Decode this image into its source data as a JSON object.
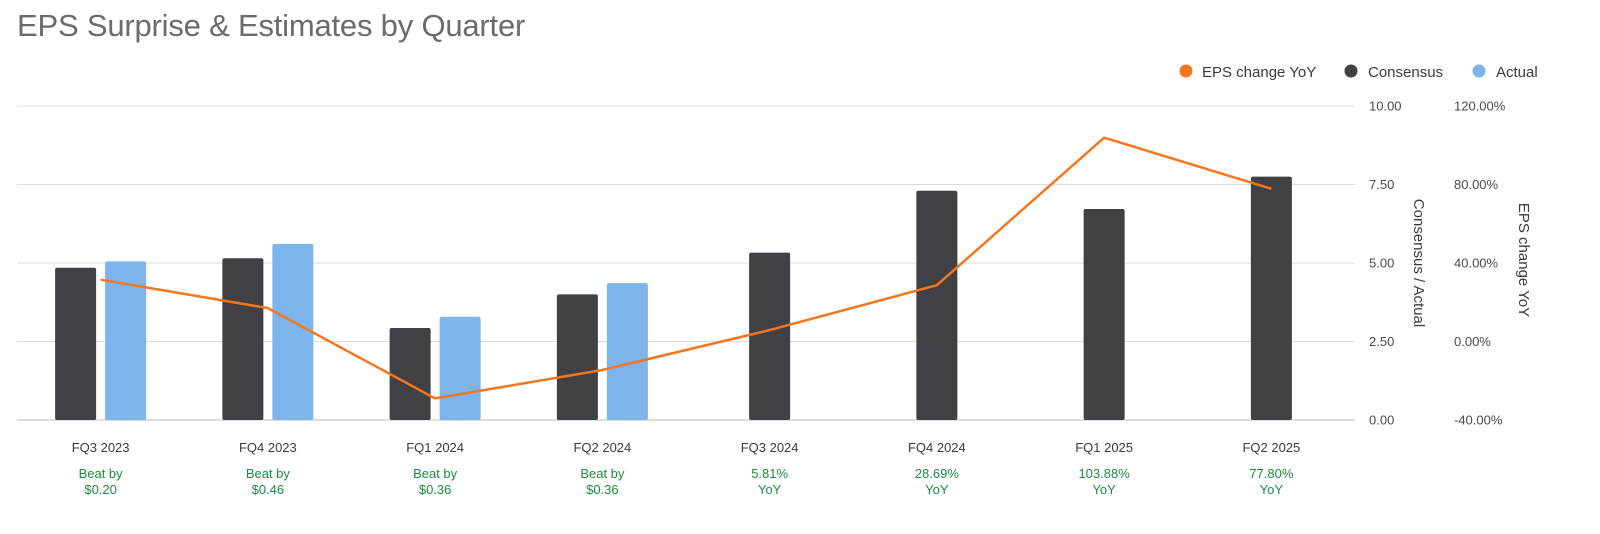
{
  "chart_data": {
    "type": "bar",
    "title": "EPS Surprise & Estimates by Quarter",
    "categories": [
      "FQ3 2023",
      "FQ4 2023",
      "FQ1 2024",
      "FQ2 2024",
      "FQ3 2024",
      "FQ4 2024",
      "FQ1 2025",
      "FQ2 2025"
    ],
    "series": [
      {
        "name": "Consensus",
        "type": "bar",
        "axis": "left",
        "color": "#414045",
        "values": [
          4.85,
          5.15,
          2.93,
          4.0,
          5.33,
          7.3,
          6.72,
          7.75
        ]
      },
      {
        "name": "Actual",
        "type": "bar",
        "axis": "left",
        "color": "#7cb4eb",
        "values": [
          5.05,
          5.61,
          3.29,
          4.36,
          null,
          null,
          null,
          null
        ]
      },
      {
        "name": "EPS change YoY",
        "type": "line",
        "axis": "right",
        "color": "#f4761f",
        "values": [
          31.5,
          17.0,
          -29.0,
          -14.5,
          5.81,
          28.69,
          103.88,
          77.8
        ]
      }
    ],
    "y_left": {
      "label": "Consensus / Actual",
      "ylim": [
        0,
        10
      ],
      "ticks": [
        "0.00",
        "2.50",
        "5.00",
        "7.50",
        "10.00"
      ]
    },
    "y_right": {
      "label": "EPS change YoY",
      "ylim": [
        -40,
        120
      ],
      "ticks": [
        "-40.00%",
        "0.00%",
        "40.00%",
        "80.00%",
        "120.00%"
      ]
    },
    "legend": {
      "position": "top-right",
      "items": [
        "EPS change YoY",
        "Consensus",
        "Actual"
      ]
    },
    "annotations": [
      [
        "Beat by",
        "$0.20"
      ],
      [
        "Beat by",
        "$0.46"
      ],
      [
        "Beat by",
        "$0.36"
      ],
      [
        "Beat by",
        "$0.36"
      ],
      [
        "5.81%",
        "YoY"
      ],
      [
        "28.69%",
        "YoY"
      ],
      [
        "103.88%",
        "YoY"
      ],
      [
        "77.80%",
        "YoY"
      ]
    ],
    "grid": true
  }
}
